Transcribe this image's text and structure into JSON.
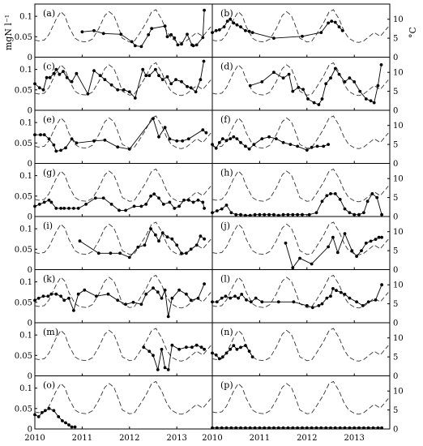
{
  "chart_data": {
    "type": "line",
    "layout": {
      "rows": 8,
      "cols": 2
    },
    "left_ylabel": "mgN l⁻¹",
    "right_ylabel": "°C",
    "x_ticks": [
      "2010",
      "2011",
      "2012",
      "2013"
    ],
    "left_y_ticks": [
      "0",
      "0.05",
      "0.1"
    ],
    "right_y_ticks": [
      "0",
      "5",
      "10"
    ],
    "xlim": [
      2010.0,
      2013.75
    ],
    "ylim_left": [
      0,
      0.13
    ],
    "ylim_right": [
      0,
      14
    ],
    "temperature": {
      "style": "dashed",
      "x": [
        2010.0,
        2010.08,
        2010.2,
        2010.3,
        2010.45,
        2010.55,
        2010.63,
        2010.72,
        2010.85,
        2010.95,
        2011.1,
        2011.22,
        2011.35,
        2011.48,
        2011.57,
        2011.67,
        2011.75,
        2011.85,
        2012.0,
        2012.1,
        2012.2,
        2012.35,
        2012.47,
        2012.56,
        2012.68,
        2012.78,
        2012.88,
        2013.02,
        2013.1,
        2013.2,
        2013.32,
        2013.42,
        2013.55,
        2013.65,
        2013.72
      ],
      "y": [
        4.5,
        4.3,
        4.5,
        6,
        10,
        12,
        11,
        8,
        5,
        4.2,
        4,
        4.8,
        7.5,
        11,
        12,
        11,
        8.5,
        5,
        4,
        4.2,
        6,
        9,
        12,
        12.5,
        10,
        7,
        5,
        4,
        3.9,
        4.3,
        5.5,
        6.5,
        5.5,
        7,
        8
      ]
    },
    "panels": [
      {
        "label": "(a)",
        "x": [
          2011.0,
          2011.25,
          2011.45,
          2011.82,
          2012.05,
          2012.12,
          2012.25,
          2012.4,
          2012.47,
          2012.75,
          2012.8,
          2012.88,
          2012.95,
          2013.02,
          2013.1,
          2013.22,
          2013.32,
          2013.35,
          2013.42,
          2013.55,
          2013.58
        ],
        "y": [
          0.062,
          0.065,
          0.058,
          0.056,
          0.038,
          0.028,
          0.026,
          0.055,
          0.07,
          0.076,
          0.05,
          0.055,
          0.047,
          0.03,
          0.032,
          0.056,
          0.03,
          0.028,
          0.03,
          0.048,
          0.115
        ]
      },
      {
        "label": "(b)",
        "x": [
          2010.0,
          2010.08,
          2010.15,
          2010.25,
          2010.32,
          2010.38,
          2010.45,
          2010.52,
          2010.6,
          2010.7,
          2010.78,
          2010.85,
          2011.3,
          2011.9,
          2012.3,
          2012.45,
          2012.52,
          2012.6,
          2012.68,
          2012.75
        ],
        "y": [
          6.5,
          7,
          7.2,
          8,
          9.5,
          10,
          9,
          8.5,
          8,
          7,
          6.8,
          6.5,
          5,
          5.5,
          6.5,
          9,
          9.5,
          9.2,
          8,
          7
        ]
      },
      {
        "label": "(c)",
        "x": [
          2010.0,
          2010.1,
          2010.18,
          2010.25,
          2010.32,
          2010.4,
          2010.45,
          2010.52,
          2010.6,
          2010.68,
          2010.78,
          2010.88,
          2011.12,
          2011.25,
          2011.38,
          2011.48,
          2011.62,
          2011.75,
          2011.88,
          2012.0,
          2012.12,
          2012.28,
          2012.35,
          2012.42,
          2012.55,
          2012.62,
          2012.7,
          2012.8,
          2012.88,
          2012.98,
          2013.1,
          2013.22,
          2013.3,
          2013.4,
          2013.5,
          2013.57
        ],
        "y": [
          0.065,
          0.055,
          0.05,
          0.08,
          0.08,
          0.09,
          0.1,
          0.088,
          0.095,
          0.08,
          0.07,
          0.09,
          0.04,
          0.097,
          0.085,
          0.075,
          0.062,
          0.05,
          0.05,
          0.045,
          0.03,
          0.1,
          0.085,
          0.085,
          0.1,
          0.085,
          0.075,
          0.082,
          0.065,
          0.075,
          0.07,
          0.058,
          0.055,
          0.045,
          0.075,
          0.12
        ]
      },
      {
        "label": "(d)",
        "x": [
          2010.8,
          2011.05,
          2011.3,
          2011.5,
          2011.62,
          2011.7,
          2011.82,
          2011.92,
          2012.02,
          2012.15,
          2012.25,
          2012.32,
          2012.4,
          2012.5,
          2012.6,
          2012.68,
          2012.8,
          2012.9,
          2013.0,
          2013.12,
          2013.25,
          2013.35,
          2013.42,
          2013.5,
          2013.57
        ],
        "y": [
          6.5,
          7.5,
          10,
          8.5,
          9.5,
          5,
          6,
          5.5,
          3,
          2,
          1.5,
          3,
          7,
          8.5,
          11,
          9.5,
          7.5,
          8.5,
          7.5,
          5,
          3,
          2.5,
          2,
          6.5,
          12
        ]
      },
      {
        "label": "(e)",
        "x": [
          2010.0,
          2010.12,
          2010.2,
          2010.3,
          2010.4,
          2010.45,
          2010.55,
          2010.65,
          2010.78,
          2010.88,
          2011.25,
          2011.48,
          2011.75,
          2012.0,
          2012.5,
          2012.62,
          2012.75,
          2012.85,
          2013.0,
          2013.12,
          2013.25,
          2013.55,
          2013.62
        ],
        "y": [
          0.07,
          0.07,
          0.07,
          0.06,
          0.045,
          0.03,
          0.032,
          0.038,
          0.06,
          0.05,
          0.055,
          0.057,
          0.04,
          0.035,
          0.11,
          0.065,
          0.088,
          0.06,
          0.055,
          0.055,
          0.06,
          0.082,
          0.075
        ]
      },
      {
        "label": "(f)",
        "x": [
          2010.0,
          2010.08,
          2010.15,
          2010.22,
          2010.3,
          2010.38,
          2010.45,
          2010.52,
          2010.6,
          2010.7,
          2010.78,
          2010.88,
          2011.05,
          2011.2,
          2011.35,
          2011.5,
          2011.65,
          2011.8,
          2012.0,
          2012.1,
          2012.22,
          2012.35,
          2012.45
        ],
        "y": [
          5,
          4,
          5.5,
          6.5,
          6,
          6.5,
          7,
          6.5,
          5.5,
          4.5,
          3.8,
          5,
          6.5,
          7,
          6.5,
          5.5,
          5,
          4.5,
          3.5,
          4.2,
          4.5,
          4.5,
          5
        ]
      },
      {
        "label": "(g)",
        "x": [
          2010.0,
          2010.1,
          2010.2,
          2010.3,
          2010.35,
          2010.45,
          2010.55,
          2010.62,
          2010.72,
          2010.82,
          2010.92,
          2011.08,
          2011.28,
          2011.45,
          2011.62,
          2011.78,
          2011.92,
          2012.1,
          2012.25,
          2012.35,
          2012.45,
          2012.52,
          2012.62,
          2012.72,
          2012.85,
          2012.95,
          2013.05,
          2013.15,
          2013.25,
          2013.35,
          2013.45,
          2013.55,
          2013.58
        ],
        "y": [
          0.025,
          0.03,
          0.035,
          0.04,
          0.035,
          0.02,
          0.02,
          0.02,
          0.02,
          0.02,
          0.02,
          0.03,
          0.045,
          0.045,
          0.03,
          0.015,
          0.015,
          0.025,
          0.025,
          0.03,
          0.05,
          0.055,
          0.045,
          0.03,
          0.035,
          0.02,
          0.025,
          0.04,
          0.04,
          0.035,
          0.04,
          0.035,
          0.02
        ]
      },
      {
        "label": "(h)",
        "x": [
          2010.0,
          2010.1,
          2010.2,
          2010.3,
          2010.4,
          2010.5,
          2010.6,
          2010.7,
          2010.8,
          2010.9,
          2011.0,
          2011.1,
          2011.2,
          2011.3,
          2011.4,
          2011.5,
          2011.6,
          2011.7,
          2011.8,
          2011.9,
          2012.05,
          2012.2,
          2012.32,
          2012.42,
          2012.5,
          2012.6,
          2012.7,
          2012.8,
          2012.9,
          2013.0,
          2013.1,
          2013.2,
          2013.28,
          2013.38,
          2013.48,
          2013.58
        ],
        "y": [
          1,
          1.5,
          2,
          3,
          1,
          0.5,
          0.5,
          0.3,
          0.3,
          0.5,
          0.5,
          0.5,
          0.5,
          0.5,
          0.3,
          0.5,
          0.5,
          0.5,
          0.5,
          0.5,
          0.5,
          1,
          4,
          5.5,
          6,
          6,
          4.5,
          2,
          1,
          0.5,
          0.5,
          1,
          4,
          6,
          5,
          0.5
        ]
      },
      {
        "label": "(i)",
        "x": [
          2010.95,
          2011.35,
          2011.6,
          2011.8,
          2012.0,
          2012.18,
          2012.32,
          2012.45,
          2012.55,
          2012.62,
          2012.7,
          2012.8,
          2012.9,
          2013.0,
          2013.1,
          2013.2,
          2013.3,
          2013.42,
          2013.5,
          2013.58
        ],
        "y": [
          0.07,
          0.04,
          0.04,
          0.04,
          0.03,
          0.055,
          0.06,
          0.1,
          0.085,
          0.07,
          0.09,
          0.08,
          0.075,
          0.06,
          0.04,
          0.04,
          0.05,
          0.06,
          0.082,
          0.075
        ]
      },
      {
        "label": "(j)",
        "x": [
          2011.55,
          2011.7,
          2011.85,
          2012.1,
          2012.45,
          2012.55,
          2012.65,
          2012.8,
          2012.95,
          2013.05,
          2013.15,
          2013.25,
          2013.35,
          2013.45,
          2013.52,
          2013.58
        ],
        "y": [
          7,
          0.5,
          3,
          1.5,
          6,
          8.5,
          4.5,
          9.5,
          5,
          3.5,
          5,
          7,
          7.5,
          8,
          8.5,
          8.5
        ]
      },
      {
        "label": "(k)",
        "x": [
          2010.0,
          2010.08,
          2010.18,
          2010.28,
          2010.35,
          2010.45,
          2010.55,
          2010.62,
          2010.72,
          2010.82,
          2010.92,
          2011.05,
          2011.3,
          2011.55,
          2011.75,
          2011.92,
          2012.08,
          2012.25,
          2012.35,
          2012.5,
          2012.6,
          2012.68,
          2012.75,
          2012.82,
          2012.9,
          2013.05,
          2013.2,
          2013.3,
          2013.45,
          2013.58
        ],
        "y": [
          0.055,
          0.06,
          0.065,
          0.065,
          0.07,
          0.07,
          0.065,
          0.055,
          0.06,
          0.03,
          0.07,
          0.08,
          0.065,
          0.07,
          0.055,
          0.045,
          0.05,
          0.045,
          0.07,
          0.085,
          0.075,
          0.06,
          0.08,
          0.015,
          0.06,
          0.08,
          0.07,
          0.055,
          0.06,
          0.095
        ]
      },
      {
        "label": "(l)",
        "x": [
          2010.0,
          2010.1,
          2010.2,
          2010.28,
          2010.38,
          2010.48,
          2010.55,
          2010.62,
          2010.72,
          2010.82,
          2010.92,
          2011.05,
          2011.4,
          2011.72,
          2012.0,
          2012.12,
          2012.25,
          2012.32,
          2012.42,
          2012.5,
          2012.55,
          2012.62,
          2012.72,
          2012.8,
          2012.9,
          2013.05,
          2013.18,
          2013.3,
          2013.45,
          2013.58
        ],
        "y": [
          5.5,
          5.5,
          6.5,
          7,
          6.5,
          7,
          6.5,
          7.5,
          6,
          5.5,
          6.5,
          5.5,
          5.5,
          5.5,
          4.5,
          4,
          4.5,
          5,
          6.5,
          7,
          9,
          8.5,
          8,
          7.5,
          6.5,
          5.5,
          4.5,
          5.5,
          6,
          10
        ]
      },
      {
        "label": "(m)",
        "x": [
          2012.3,
          2012.42,
          2012.5,
          2012.6,
          2012.68,
          2012.75,
          2012.82,
          2012.9,
          2013.05,
          2013.2,
          2013.32,
          2013.42,
          2013.52,
          2013.58
        ],
        "y": [
          0.07,
          0.06,
          0.05,
          0.015,
          0.065,
          0.02,
          0.015,
          0.075,
          0.065,
          0.07,
          0.07,
          0.075,
          0.07,
          0.065
        ]
      },
      {
        "label": "(n)",
        "x": [
          2010.0,
          2010.08,
          2010.15,
          2010.22,
          2010.3,
          2010.38,
          2010.45,
          2010.52,
          2010.6,
          2010.7,
          2010.78,
          2010.85
        ],
        "y": [
          6,
          5.5,
          4.5,
          5,
          6,
          7,
          8,
          7,
          7.5,
          8,
          6.5,
          5
        ]
      },
      {
        "label": "(o)",
        "x": [
          2010.0,
          2010.08,
          2010.15,
          2010.22,
          2010.3,
          2010.4,
          2010.5,
          2010.58,
          2010.65,
          2010.72,
          2010.78,
          2010.85
        ],
        "y": [
          0.035,
          0.03,
          0.04,
          0.045,
          0.05,
          0.045,
          0.03,
          0.02,
          0.015,
          0.01,
          0.005,
          0.005
        ]
      },
      {
        "label": "(p)",
        "x": [
          2010.0,
          2010.1,
          2010.2,
          2010.3,
          2010.4,
          2010.5,
          2010.6,
          2010.7,
          2010.8,
          2010.9,
          2011.0,
          2011.1,
          2011.2,
          2011.3,
          2011.4,
          2011.5,
          2011.6,
          2011.7,
          2011.8,
          2011.9,
          2012.0,
          2012.1,
          2012.2,
          2012.3,
          2012.4,
          2012.5,
          2012.6,
          2012.7,
          2012.8,
          2012.9,
          2013.0,
          2013.1,
          2013.2,
          2013.3,
          2013.4,
          2013.5,
          2013.58
        ],
        "y": [
          0.3,
          0.3,
          0.3,
          0.3,
          0.3,
          0.3,
          0.3,
          0.3,
          0.3,
          0.3,
          0.3,
          0.3,
          0.3,
          0.3,
          0.3,
          0.3,
          0.3,
          0.3,
          0.3,
          0.3,
          0.3,
          0.3,
          0.3,
          0.3,
          0.3,
          0.3,
          0.3,
          0.3,
          0.3,
          0.3,
          0.3,
          0.3,
          0.3,
          0.3,
          0.3,
          0.3,
          0.3
        ]
      }
    ]
  }
}
